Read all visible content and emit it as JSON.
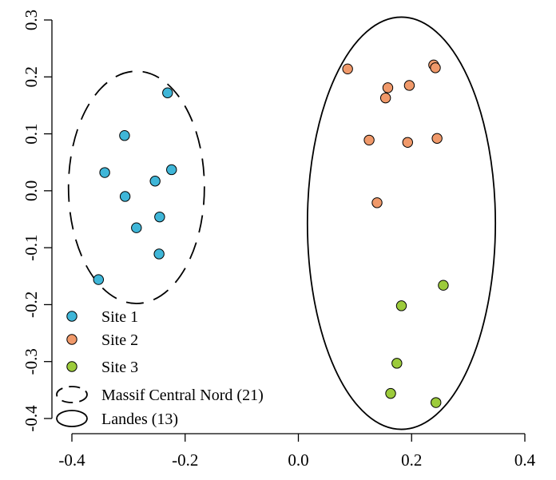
{
  "chart_data": {
    "type": "scatter",
    "title": "",
    "xlabel": "",
    "ylabel": "",
    "xlim": [
      -0.4,
      0.4
    ],
    "ylim": [
      -0.4,
      0.3
    ],
    "xticks": [
      {
        "value": -0.4,
        "label": "-0.4"
      },
      {
        "value": -0.2,
        "label": "-0.2"
      },
      {
        "value": 0.0,
        "label": "0.0"
      },
      {
        "value": 0.2,
        "label": "0.2"
      },
      {
        "value": 0.4,
        "label": "0.4"
      }
    ],
    "yticks": [
      {
        "value": -0.4,
        "label": "-0.4"
      },
      {
        "value": -0.3,
        "label": "-0.3"
      },
      {
        "value": -0.2,
        "label": "-0.2"
      },
      {
        "value": -0.1,
        "label": "-0.1"
      },
      {
        "value": 0.0,
        "label": "0.0"
      },
      {
        "value": 0.1,
        "label": "0.1"
      },
      {
        "value": 0.2,
        "label": "0.2"
      },
      {
        "value": 0.3,
        "label": "0.3"
      }
    ],
    "grid": false,
    "legend_position": "bottom-left",
    "series": [
      {
        "name": "Site 1",
        "color": "#3fb6d8",
        "points": [
          {
            "x": -0.231,
            "y": 0.172
          },
          {
            "x": -0.307,
            "y": 0.097
          },
          {
            "x": -0.342,
            "y": 0.032
          },
          {
            "x": -0.224,
            "y": 0.037
          },
          {
            "x": -0.253,
            "y": 0.017
          },
          {
            "x": -0.306,
            "y": -0.01
          },
          {
            "x": -0.245,
            "y": -0.046
          },
          {
            "x": -0.286,
            "y": -0.065
          },
          {
            "x": -0.246,
            "y": -0.111
          },
          {
            "x": -0.353,
            "y": -0.156
          }
        ]
      },
      {
        "name": "Site 2",
        "color": "#f0996a",
        "points": [
          {
            "x": 0.087,
            "y": 0.214
          },
          {
            "x": 0.239,
            "y": 0.221
          },
          {
            "x": 0.242,
            "y": 0.216
          },
          {
            "x": 0.158,
            "y": 0.181
          },
          {
            "x": 0.196,
            "y": 0.185
          },
          {
            "x": 0.154,
            "y": 0.163
          },
          {
            "x": 0.125,
            "y": 0.089
          },
          {
            "x": 0.193,
            "y": 0.085
          },
          {
            "x": 0.245,
            "y": 0.092
          },
          {
            "x": 0.139,
            "y": -0.021
          }
        ]
      },
      {
        "name": "Site 3",
        "color": "#9ccb3b",
        "points": [
          {
            "x": 0.256,
            "y": -0.166
          },
          {
            "x": 0.182,
            "y": -0.202
          },
          {
            "x": 0.174,
            "y": -0.303
          },
          {
            "x": 0.163,
            "y": -0.356
          },
          {
            "x": 0.243,
            "y": -0.372
          }
        ]
      }
    ],
    "ellipses": [
      {
        "name": "Massif Central Nord (21)",
        "style": "dashed",
        "cx": -0.286,
        "cy": 0.006,
        "rx": 0.12,
        "ry": 0.204
      },
      {
        "name": "Landes (13)",
        "style": "solid",
        "cx": 0.182,
        "cy": -0.057,
        "rx": 0.166,
        "ry": 0.362
      }
    ]
  }
}
